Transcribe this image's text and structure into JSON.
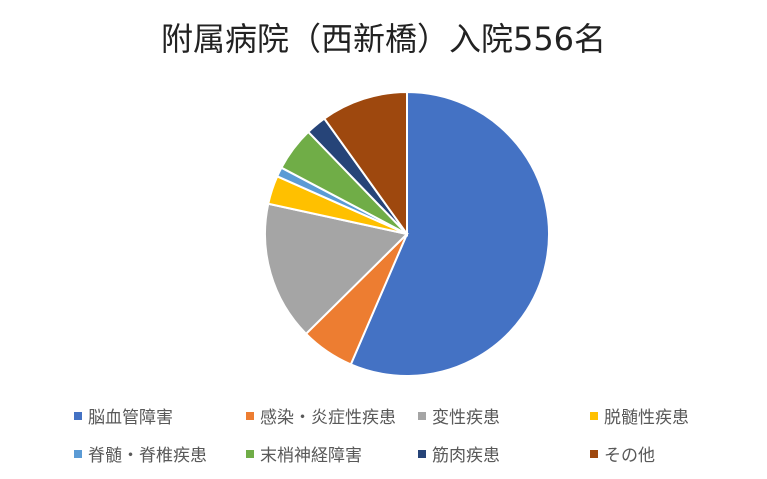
{
  "chart_data": {
    "type": "pie",
    "title": "附属病院（西新橋）入院556名",
    "legend_position": "bottom",
    "categories": [
      "脳血管障害",
      "感染・炎症性疾患",
      "変性疾患",
      "脱髄性疾患",
      "脊髄・脊椎疾患",
      "末梢神経障害",
      "筋肉疾患",
      "その他"
    ],
    "values": [
      314,
      34,
      88,
      18,
      6,
      28,
      13,
      55
    ],
    "colors": [
      "#4472C4",
      "#ED7D31",
      "#A5A5A5",
      "#FFC000",
      "#5B9BD5",
      "#70AD47",
      "#264478",
      "#9E480E"
    ]
  }
}
